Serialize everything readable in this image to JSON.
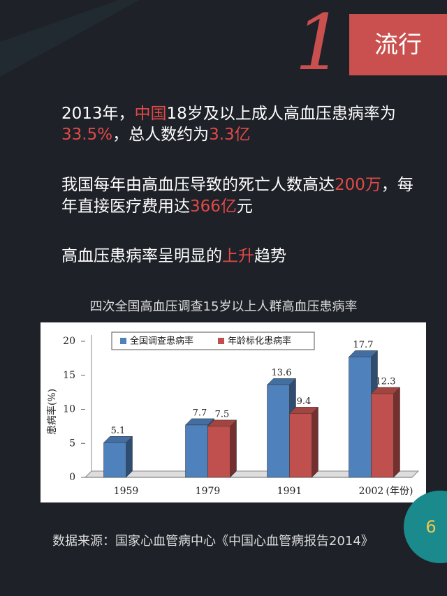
{
  "header": {
    "number": "1",
    "label": "流行"
  },
  "paragraphs": [
    {
      "lines": [
        [
          {
            "text": "2013年，",
            "highlight": false
          },
          {
            "text": "中国",
            "highlight": true
          },
          {
            "text": "18岁及以上成人高血压患病率为",
            "highlight": false
          }
        ],
        [
          {
            "text": "33.5%",
            "highlight": true
          },
          {
            "text": "，总人数约为",
            "highlight": false
          },
          {
            "text": "3.3亿",
            "highlight": true
          }
        ]
      ]
    },
    {
      "lines": [
        [
          {
            "text": "我国每年由高血压导致的死亡人数高达",
            "highlight": false
          },
          {
            "text": "200万",
            "highlight": true
          },
          {
            "text": "，每",
            "highlight": false
          }
        ],
        [
          {
            "text": "年直接医疗费用达",
            "highlight": false
          },
          {
            "text": "366亿",
            "highlight": true
          },
          {
            "text": "元",
            "highlight": false
          }
        ]
      ]
    },
    {
      "lines": [
        [
          {
            "text": "高血压患病率呈明显的",
            "highlight": false
          },
          {
            "text": "上升",
            "highlight": true
          },
          {
            "text": "趋势",
            "highlight": false
          }
        ]
      ]
    }
  ],
  "chart_data": {
    "type": "bar3d",
    "title": "四次全国高血压调查15岁以上人群高血压患病率",
    "categories": [
      "1959",
      "1979",
      "1991",
      "2002"
    ],
    "series": [
      {
        "name": "全国调查患病率",
        "color": "#4f81bd",
        "values": [
          5.1,
          7.7,
          13.6,
          17.7
        ]
      },
      {
        "name": "年龄标化患病率",
        "color": "#c0504d",
        "values": [
          null,
          7.5,
          9.4,
          12.3
        ]
      }
    ],
    "y_label": "患病率(%)",
    "x_label": "(年份)",
    "ylim": [
      0,
      20
    ],
    "yticks": [
      0,
      5,
      10,
      15,
      20
    ]
  },
  "source": "数据来源：国家心血管病中心《中国心血管病报告2014》",
  "page_number": "6"
}
